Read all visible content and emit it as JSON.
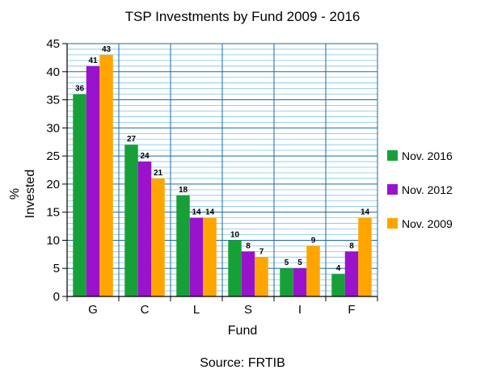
{
  "chart_data": {
    "type": "bar",
    "title": "TSP Investments by Fund 2009 - 2016",
    "xlabel": "Fund",
    "ylabel": "% Invested",
    "ylabel_lines": [
      "%",
      "Invested"
    ],
    "source": "Source: FRTIB",
    "categories": [
      "G",
      "C",
      "L",
      "S",
      "I",
      "F"
    ],
    "ylim": [
      0,
      45
    ],
    "yticks": [
      0,
      5,
      10,
      15,
      20,
      25,
      30,
      35,
      40,
      45
    ],
    "grid": true,
    "legend_position": "right",
    "series": [
      {
        "name": "Nov. 2016",
        "color": "#18a038",
        "values": [
          36,
          27,
          18,
          10,
          5,
          4
        ]
      },
      {
        "name": "Nov. 2012",
        "color": "#9a12cc",
        "values": [
          41,
          24,
          14,
          8,
          5,
          8
        ]
      },
      {
        "name": "Nov. 2009",
        "color": "#ffa500",
        "values": [
          43,
          21,
          14,
          7,
          9,
          14
        ]
      }
    ],
    "colors": {
      "grid_major": "#1a6aa8",
      "grid_minor": "#7ec4e6"
    }
  }
}
